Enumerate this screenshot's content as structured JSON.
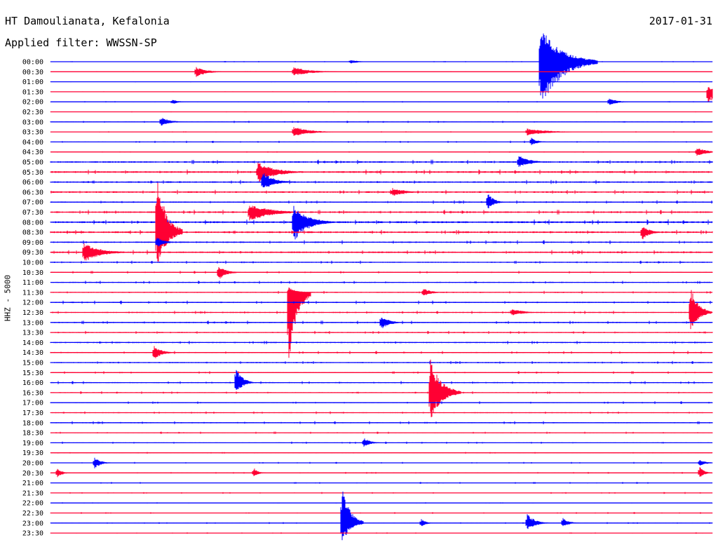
{
  "header": {
    "station": "HT Damoulianata, Kefalonia",
    "filter": "Applied filter: WWSSN-SP",
    "date": "2017-01-31",
    "channel": "HHZ - 5000"
  },
  "chart_data": {
    "type": "line",
    "title": "HT Damoulianata, Kefalonia",
    "subtitle": "Applied filter: WWSSN-SP",
    "date": "2017-01-31",
    "ylabel": "HHZ - 5000",
    "row_labels": [
      "00:00",
      "00:30",
      "01:00",
      "01:30",
      "02:00",
      "02:30",
      "03:00",
      "03:30",
      "04:00",
      "04:30",
      "05:00",
      "05:30",
      "06:00",
      "06:30",
      "07:00",
      "07:30",
      "08:00",
      "08:30",
      "09:00",
      "09:30",
      "10:00",
      "10:30",
      "11:00",
      "11:30",
      "12:00",
      "12:30",
      "13:00",
      "13:30",
      "14:00",
      "14:30",
      "15:00",
      "15:30",
      "16:00",
      "16:30",
      "17:00",
      "17:30",
      "18:00",
      "18:30",
      "19:00",
      "19:30",
      "20:00",
      "20:30",
      "21:00",
      "21:30",
      "22:00",
      "22:30",
      "23:00",
      "23:30"
    ],
    "trace_colors": [
      "#0000ff",
      "#ff0033"
    ],
    "minutes_per_line": 30,
    "noise_level": [
      0.15,
      0.1,
      0.1,
      0.1,
      0.15,
      0.1,
      0.25,
      0.15,
      0.25,
      0.15,
      0.5,
      0.55,
      0.5,
      0.5,
      0.4,
      0.5,
      0.6,
      0.55,
      0.45,
      0.5,
      0.35,
      0.3,
      0.35,
      0.35,
      0.4,
      0.35,
      0.4,
      0.35,
      0.4,
      0.35,
      0.35,
      0.3,
      0.35,
      0.3,
      0.3,
      0.3,
      0.35,
      0.25,
      0.25,
      0.2,
      0.2,
      0.2,
      0.2,
      0.2,
      0.15,
      0.2,
      0.2,
      0.15
    ],
    "events": [
      {
        "row": 0,
        "minute": 13.6,
        "up": 3,
        "down": 3,
        "width": 1.0
      },
      {
        "row": 0,
        "minute": 22.2,
        "up": 52,
        "down": 72,
        "width": 2.6
      },
      {
        "row": 0,
        "minute": 23.6,
        "up": 4,
        "down": 4,
        "width": 1.0
      },
      {
        "row": 1,
        "minute": 6.6,
        "up": 7,
        "down": 8,
        "width": 1.3
      },
      {
        "row": 1,
        "minute": 11.0,
        "up": 7,
        "down": 6,
        "width": 2.2
      },
      {
        "row": 3,
        "minute": 29.8,
        "up": 8,
        "down": 20,
        "width": 1.0
      },
      {
        "row": 4,
        "minute": 5.5,
        "up": 4,
        "down": 4,
        "width": 0.8
      },
      {
        "row": 4,
        "minute": 25.3,
        "up": 6,
        "down": 6,
        "width": 1.0
      },
      {
        "row": 6,
        "minute": 5.0,
        "up": 7,
        "down": 6,
        "width": 1.2
      },
      {
        "row": 7,
        "minute": 11.0,
        "up": 8,
        "down": 7,
        "width": 2.0
      },
      {
        "row": 7,
        "minute": 21.6,
        "up": 5,
        "down": 5,
        "width": 2.6
      },
      {
        "row": 8,
        "minute": 21.8,
        "up": 6,
        "down": 5,
        "width": 0.8
      },
      {
        "row": 9,
        "minute": 29.3,
        "up": 6,
        "down": 6,
        "width": 1.4
      },
      {
        "row": 10,
        "minute": 21.2,
        "up": 10,
        "down": 8,
        "width": 1.4
      },
      {
        "row": 11,
        "minute": 9.4,
        "up": 14,
        "down": 16,
        "width": 2.2
      },
      {
        "row": 12,
        "minute": 9.6,
        "up": 16,
        "down": 12,
        "width": 1.4
      },
      {
        "row": 13,
        "minute": 15.5,
        "up": 6,
        "down": 6,
        "width": 1.6
      },
      {
        "row": 14,
        "minute": 19.8,
        "up": 14,
        "down": 12,
        "width": 0.8
      },
      {
        "row": 15,
        "minute": 9.0,
        "up": 12,
        "down": 14,
        "width": 2.6
      },
      {
        "row": 16,
        "minute": 11.0,
        "up": 26,
        "down": 30,
        "width": 1.8
      },
      {
        "row": 17,
        "minute": 4.8,
        "up": 90,
        "down": 60,
        "width": 1.2
      },
      {
        "row": 17,
        "minute": 26.8,
        "up": 10,
        "down": 12,
        "width": 1.0
      },
      {
        "row": 18,
        "minute": 4.8,
        "up": 8,
        "down": 8,
        "width": 1.0
      },
      {
        "row": 19,
        "minute": 1.5,
        "up": 14,
        "down": 16,
        "width": 2.0
      },
      {
        "row": 21,
        "minute": 7.6,
        "up": 10,
        "down": 12,
        "width": 1.0
      },
      {
        "row": 23,
        "minute": 10.8,
        "up": 8,
        "down": 132,
        "width": 1.0
      },
      {
        "row": 23,
        "minute": 16.9,
        "up": 6,
        "down": 6,
        "width": 1.0
      },
      {
        "row": 25,
        "minute": 29.0,
        "up": 38,
        "down": 30,
        "width": 1.0
      },
      {
        "row": 25,
        "minute": 20.9,
        "up": 6,
        "down": 5,
        "width": 1.4
      },
      {
        "row": 26,
        "minute": 15.0,
        "up": 10,
        "down": 10,
        "width": 1.0
      },
      {
        "row": 29,
        "minute": 4.7,
        "up": 10,
        "down": 12,
        "width": 0.9
      },
      {
        "row": 32,
        "minute": 8.4,
        "up": 26,
        "down": 18,
        "width": 0.8
      },
      {
        "row": 33,
        "minute": 17.2,
        "up": 50,
        "down": 42,
        "width": 1.4
      },
      {
        "row": 38,
        "minute": 14.2,
        "up": 8,
        "down": 6,
        "width": 0.8
      },
      {
        "row": 40,
        "minute": 2.0,
        "up": 8,
        "down": 8,
        "width": 0.8
      },
      {
        "row": 40,
        "minute": 29.4,
        "up": 5,
        "down": 5,
        "width": 0.8
      },
      {
        "row": 41,
        "minute": 0.3,
        "up": 7,
        "down": 8,
        "width": 0.6
      },
      {
        "row": 41,
        "minute": 9.2,
        "up": 8,
        "down": 6,
        "width": 0.6
      },
      {
        "row": 41,
        "minute": 29.4,
        "up": 10,
        "down": 8,
        "width": 0.6
      },
      {
        "row": 46,
        "minute": 13.2,
        "up": 58,
        "down": 32,
        "width": 1.0
      },
      {
        "row": 46,
        "minute": 21.6,
        "up": 14,
        "down": 12,
        "width": 1.0
      },
      {
        "row": 46,
        "minute": 23.2,
        "up": 8,
        "down": 6,
        "width": 0.8
      },
      {
        "row": 46,
        "minute": 16.8,
        "up": 6,
        "down": 6,
        "width": 0.6
      }
    ]
  }
}
